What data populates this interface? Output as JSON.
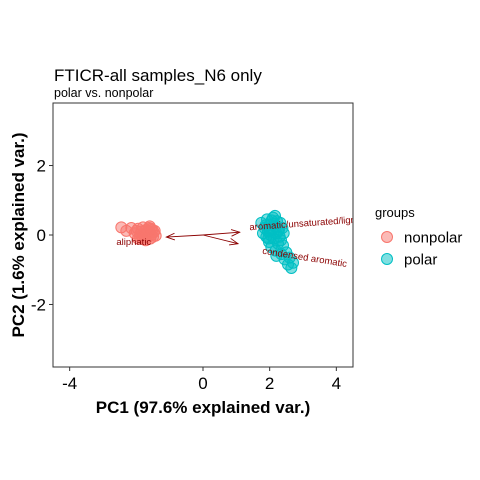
{
  "chart_data": {
    "type": "scatter",
    "title": "FTICR-all samples_N6 only",
    "subtitle": "polar vs. nonpolar",
    "xlabel": "PC1 (97.6% explained var.)",
    "ylabel": "PC2 (1.6% explained var.)",
    "xlim": [
      -4.5,
      4.5
    ],
    "ylim": [
      -3.8,
      3.8
    ],
    "x_ticks": [
      -4,
      0,
      2,
      4
    ],
    "y_ticks": [
      -2,
      0,
      2
    ],
    "x_tick_labels": [
      "-4",
      "0",
      "2",
      "4"
    ],
    "y_tick_labels": [
      "-2",
      "0",
      "2"
    ],
    "grid": false,
    "legend": {
      "title": "groups",
      "position": "right"
    },
    "series": [
      {
        "name": "nonpolar",
        "color": "#F8766D",
        "points": [
          [
            -2.45,
            0.22
          ],
          [
            -2.3,
            0.12
          ],
          [
            -2.15,
            0.2
          ],
          [
            -2.05,
            0.05
          ],
          [
            -1.95,
            0.18
          ],
          [
            -1.9,
            -0.05
          ],
          [
            -1.85,
            0.1
          ],
          [
            -1.8,
            0.22
          ],
          [
            -1.78,
            0.0
          ],
          [
            -1.75,
            -0.12
          ],
          [
            -1.7,
            0.15
          ],
          [
            -1.68,
            0.05
          ],
          [
            -1.65,
            -0.05
          ],
          [
            -1.62,
            0.2
          ],
          [
            -1.6,
            0.1
          ],
          [
            -1.58,
            -0.1
          ],
          [
            -1.55,
            0.0
          ],
          [
            -1.52,
            0.15
          ],
          [
            -1.5,
            -0.05
          ],
          [
            -1.48,
            0.08
          ],
          [
            -1.72,
            -0.15
          ],
          [
            -1.88,
            0.02
          ],
          [
            -1.6,
            0.25
          ],
          [
            -1.45,
            0.12
          ],
          [
            -1.42,
            -0.02
          ],
          [
            -2.0,
            0.12
          ],
          [
            -1.95,
            -0.1
          ],
          [
            -1.82,
            -0.08
          ],
          [
            -1.66,
            0.12
          ],
          [
            -1.56,
            0.18
          ]
        ]
      },
      {
        "name": "polar",
        "color": "#00BFC4",
        "points": [
          [
            1.75,
            0.35
          ],
          [
            1.8,
            0.05
          ],
          [
            1.85,
            0.2
          ],
          [
            1.9,
            -0.05
          ],
          [
            1.92,
            0.45
          ],
          [
            1.95,
            0.1
          ],
          [
            1.98,
            -0.2
          ],
          [
            2.0,
            0.3
          ],
          [
            2.02,
            0.0
          ],
          [
            2.05,
            -0.35
          ],
          [
            2.08,
            0.15
          ],
          [
            2.1,
            0.5
          ],
          [
            2.12,
            -0.1
          ],
          [
            2.15,
            0.25
          ],
          [
            2.18,
            -0.45
          ],
          [
            2.2,
            0.05
          ],
          [
            2.22,
            0.4
          ],
          [
            2.25,
            -0.25
          ],
          [
            2.28,
            0.15
          ],
          [
            2.3,
            -0.05
          ],
          [
            2.32,
            0.35
          ],
          [
            2.35,
            -0.55
          ],
          [
            2.38,
            0.2
          ],
          [
            2.4,
            -0.3
          ],
          [
            2.42,
            0.05
          ],
          [
            2.45,
            -0.7
          ],
          [
            2.5,
            -0.5
          ],
          [
            2.55,
            -0.85
          ],
          [
            2.6,
            -0.65
          ],
          [
            2.65,
            -0.95
          ],
          [
            2.7,
            -0.8
          ],
          [
            1.88,
            0.28
          ],
          [
            2.0,
            0.12
          ],
          [
            2.14,
            0.32
          ],
          [
            1.96,
            -0.1
          ],
          [
            2.06,
            0.42
          ],
          [
            2.26,
            0.1
          ],
          [
            2.34,
            -0.15
          ],
          [
            2.2,
            -0.6
          ],
          [
            2.16,
            0.55
          ]
        ]
      }
    ],
    "vectors": [
      {
        "label": "aliphatic",
        "x": -1.1,
        "y": -0.06
      },
      {
        "label": "aromatic/unsaturated/lignin",
        "x": 1.1,
        "y": 0.08
      },
      {
        "label": "condensed aromatic",
        "x": 1.05,
        "y": -0.25
      }
    ]
  }
}
